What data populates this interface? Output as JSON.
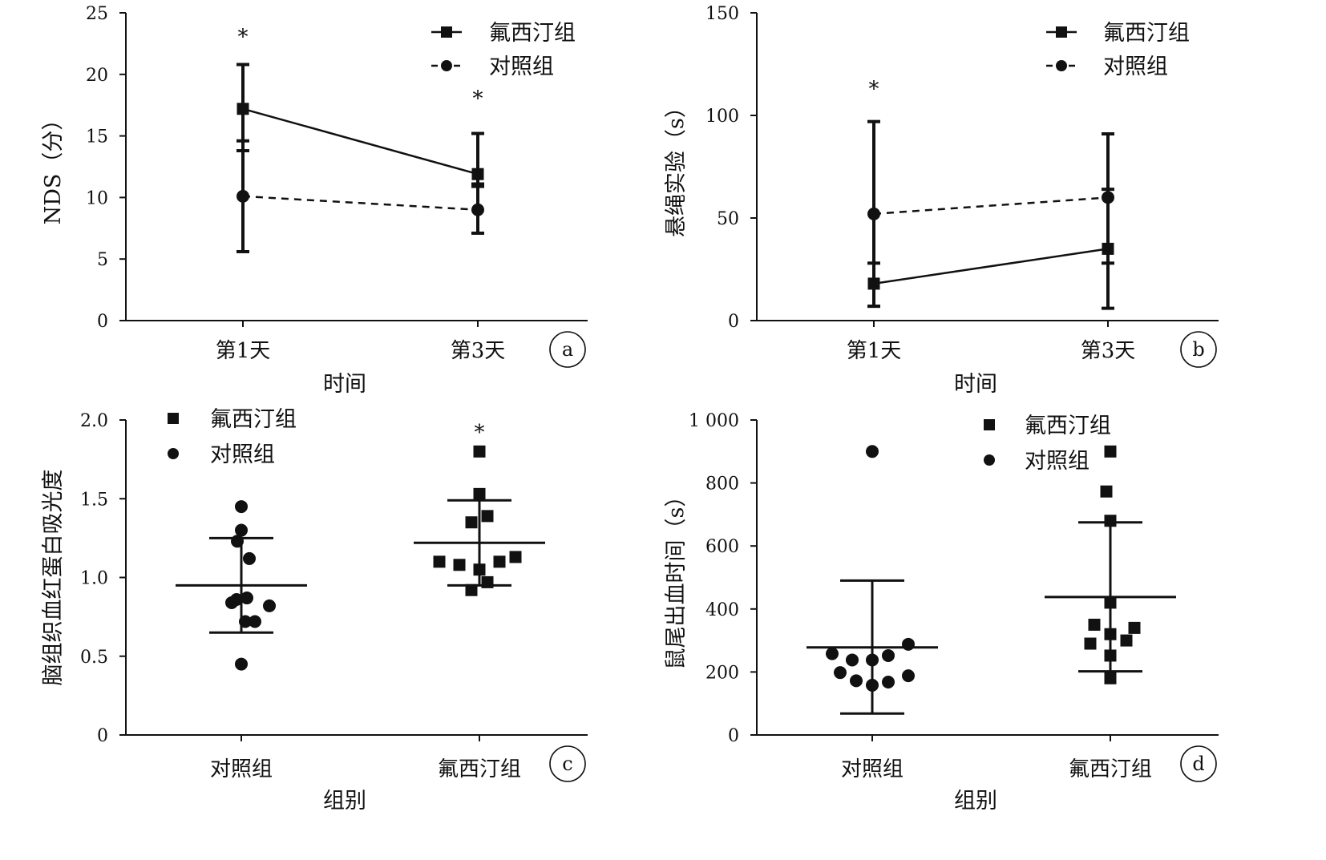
{
  "figure": {
    "colors": {
      "ink": "#111111",
      "background": "#ffffff"
    }
  },
  "chart_data": [
    {
      "panel_label": "a",
      "type": "line",
      "xlabel": "时间",
      "ylabel": "NDS（分）",
      "categories": [
        "第1天",
        "第3天"
      ],
      "ylim": [
        0,
        25
      ],
      "yticks": [
        "0",
        "5",
        "10",
        "15",
        "20",
        "25"
      ],
      "series": [
        {
          "name": "氟西汀组",
          "marker": "square",
          "line": "solid",
          "values": [
            17.2,
            11.9
          ],
          "err_low": [
            13.8,
            11.1
          ],
          "err_high": [
            20.8,
            15.2
          ]
        },
        {
          "name": "对照组",
          "marker": "circle",
          "line": "dashed",
          "values": [
            10.1,
            9.0
          ],
          "err_low": [
            5.6,
            7.1
          ],
          "err_high": [
            14.6,
            10.9
          ]
        }
      ],
      "significance": [
        {
          "category_index": 0,
          "label": "*",
          "y": 23.4
        },
        {
          "category_index": 1,
          "label": "*",
          "y": 18.4
        }
      ],
      "legend": "top-right",
      "grid": false
    },
    {
      "panel_label": "b",
      "type": "line",
      "xlabel": "时间",
      "ylabel": "悬绳实验（s）",
      "categories": [
        "第1天",
        "第3天"
      ],
      "ylim": [
        0,
        150
      ],
      "yticks": [
        "0",
        "50",
        "100",
        "150"
      ],
      "series": [
        {
          "name": "氟西汀组",
          "marker": "square",
          "line": "solid",
          "values": [
            18,
            35
          ],
          "err_low": [
            7,
            28
          ],
          "err_high": [
            28,
            64
          ]
        },
        {
          "name": "对照组",
          "marker": "circle",
          "line": "dashed",
          "values": [
            52,
            60
          ],
          "err_low": [
            7,
            6
          ],
          "err_high": [
            97,
            91
          ]
        }
      ],
      "significance": [
        {
          "category_index": 0,
          "label": "*",
          "y": 115
        }
      ],
      "legend": "top-right",
      "grid": false
    },
    {
      "panel_label": "c",
      "type": "scatter",
      "xlabel": "组别",
      "ylabel": "脑组织血红蛋白吸光度",
      "categories": [
        "对照组",
        "氟西汀组"
      ],
      "ylim": [
        0,
        2.0
      ],
      "yticks": [
        "0",
        "0.5",
        "1.0",
        "1.5",
        "2.0"
      ],
      "groups": [
        {
          "name": "对照组",
          "category_index": 0,
          "marker": "circle",
          "mean": 0.95,
          "sd_low": 0.65,
          "sd_high": 1.25,
          "points": [
            [
              -0.12,
              0.84
            ],
            [
              -0.06,
              0.86
            ],
            [
              0.07,
              0.87
            ],
            [
              0.35,
              0.82
            ],
            [
              0.05,
              0.72
            ],
            [
              0.17,
              0.72
            ],
            [
              -0.05,
              1.23
            ],
            [
              0.0,
              1.3
            ],
            [
              0.1,
              1.12
            ],
            [
              0.0,
              1.45
            ],
            [
              0.0,
              0.45
            ]
          ]
        },
        {
          "name": "氟西汀组",
          "category_index": 1,
          "marker": "square",
          "mean": 1.22,
          "sd_low": 0.95,
          "sd_high": 1.49,
          "points": [
            [
              0.0,
              1.8
            ],
            [
              0.0,
              1.53
            ],
            [
              0.1,
              1.39
            ],
            [
              -0.1,
              1.35
            ],
            [
              -0.5,
              1.1
            ],
            [
              -0.25,
              1.08
            ],
            [
              0.0,
              1.05
            ],
            [
              0.25,
              1.1
            ],
            [
              0.45,
              1.13
            ],
            [
              0.1,
              0.97
            ],
            [
              -0.1,
              0.92
            ]
          ]
        }
      ],
      "significance": [
        {
          "category_index": 1,
          "label": "*",
          "y": 1.95
        }
      ],
      "legend_entries": [
        "氟西汀组",
        "对照组"
      ],
      "legend": "top-left",
      "grid": false
    },
    {
      "panel_label": "d",
      "type": "scatter",
      "xlabel": "组别",
      "ylabel": "鼠尾出血时间（s）",
      "categories": [
        "对照组",
        "氟西汀组"
      ],
      "ylim": [
        0,
        1000
      ],
      "yticks": [
        "0",
        "200",
        "400",
        "600",
        "800",
        "1 000"
      ],
      "groups": [
        {
          "name": "对照组",
          "category_index": 0,
          "marker": "circle",
          "mean": 278,
          "sd_low": 68,
          "sd_high": 490,
          "points": [
            [
              0.0,
              900
            ],
            [
              0.45,
              288
            ],
            [
              -0.5,
              258
            ],
            [
              -0.25,
              238
            ],
            [
              0.0,
              238
            ],
            [
              0.2,
              252
            ],
            [
              -0.4,
              198
            ],
            [
              -0.2,
              172
            ],
            [
              0.0,
              158
            ],
            [
              0.2,
              168
            ],
            [
              0.45,
              188
            ]
          ]
        },
        {
          "name": "氟西汀组",
          "category_index": 1,
          "marker": "square",
          "mean": 438,
          "sd_low": 202,
          "sd_high": 675,
          "points": [
            [
              0.0,
              900
            ],
            [
              -0.05,
              773
            ],
            [
              0.0,
              680
            ],
            [
              0.0,
              420
            ],
            [
              -0.2,
              350
            ],
            [
              0.0,
              320
            ],
            [
              0.3,
              340
            ],
            [
              -0.25,
              290
            ],
            [
              0.2,
              300
            ],
            [
              0.0,
              252
            ],
            [
              0.0,
              180
            ]
          ]
        }
      ],
      "legend_entries": [
        "氟西汀组",
        "对照组"
      ],
      "legend": "top-center",
      "grid": false
    }
  ]
}
